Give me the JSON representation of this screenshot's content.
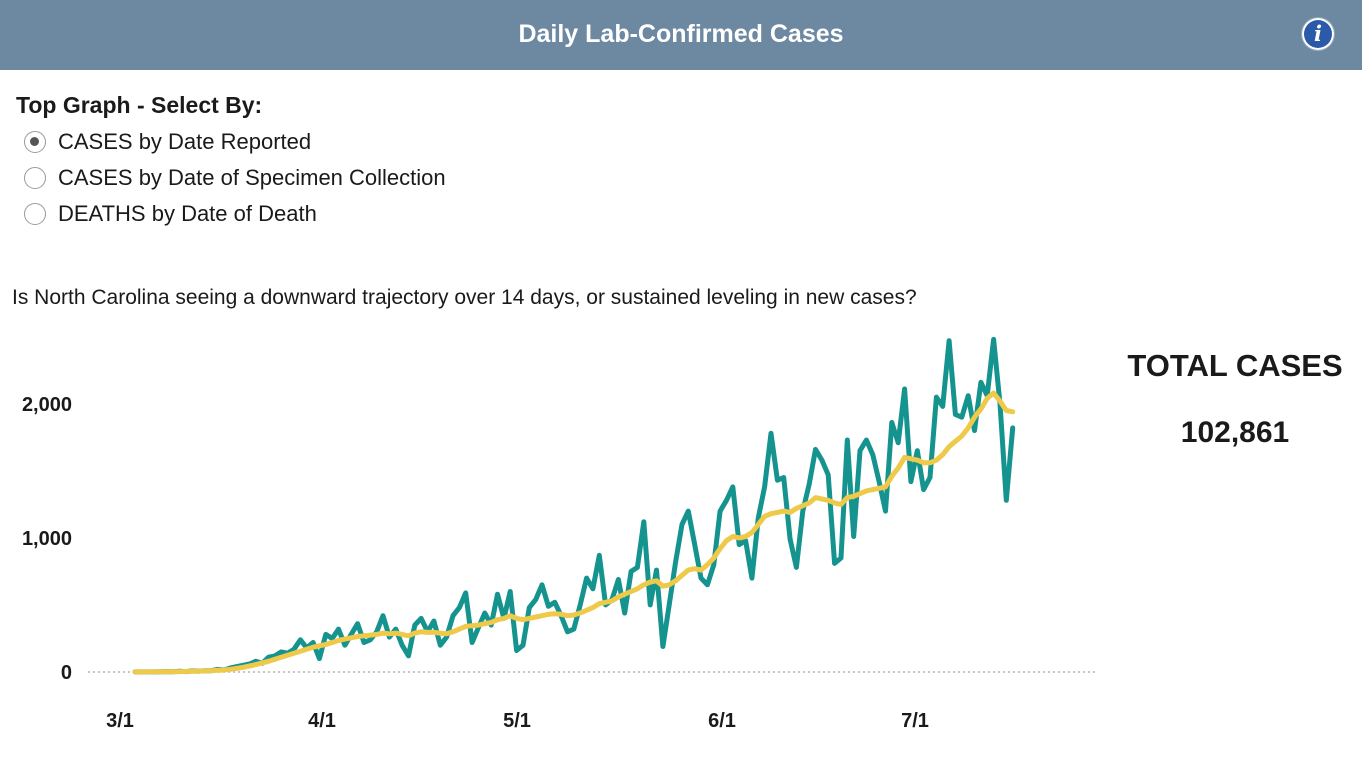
{
  "header": {
    "title": "Daily Lab-Confirmed Cases",
    "info_icon": "info-icon",
    "info_glyph": "i",
    "background_color": "#6d88a1"
  },
  "selector": {
    "label": "Top Graph - Select By:",
    "options": [
      {
        "label": "CASES by Date Reported",
        "checked": true
      },
      {
        "label": "CASES by Date of Specimen Collection",
        "checked": false
      },
      {
        "label": "DEATHS by Date of Death",
        "checked": false
      }
    ]
  },
  "question": "Is North Carolina seeing a downward trajectory over 14 days, or sustained leveling in new cases?",
  "totals": {
    "label": "TOTAL CASES",
    "value": "102,861"
  },
  "chart_data": {
    "type": "line",
    "title": "",
    "xlabel": "",
    "ylabel": "",
    "x_start": "3/3",
    "x_ticks": [
      "3/1",
      "4/1",
      "5/1",
      "6/1",
      "7/1"
    ],
    "y_ticks": [
      "0",
      "1,000",
      "2,000"
    ],
    "y_tick_values": [
      0,
      1000,
      2000
    ],
    "ylim": [
      0,
      2550
    ],
    "grid": "baseline only (dotted)",
    "legend": "none",
    "series": [
      {
        "color": "#15938f",
        "values": [
          1,
          1,
          1,
          1,
          2,
          3,
          2,
          5,
          3,
          8,
          7,
          10,
          10,
          20,
          15,
          30,
          40,
          50,
          60,
          80,
          65,
          110,
          120,
          150,
          140,
          170,
          240,
          180,
          220,
          100,
          280,
          250,
          320,
          200,
          280,
          360,
          220,
          240,
          300,
          420,
          260,
          320,
          200,
          120,
          350,
          400,
          300,
          380,
          200,
          260,
          420,
          480,
          590,
          220,
          330,
          440,
          350,
          580,
          400,
          600,
          160,
          200,
          480,
          540,
          650,
          490,
          520,
          420,
          300,
          320,
          500,
          700,
          620,
          870,
          500,
          540,
          690,
          440,
          750,
          780,
          1120,
          500,
          760,
          190,
          500,
          820,
          1100,
          1200,
          950,
          700,
          650,
          800,
          1200,
          1280,
          1380,
          950,
          980,
          700,
          1150,
          1380,
          1780,
          1430,
          1450,
          990,
          780,
          1200,
          1400,
          1660,
          1580,
          1470,
          810,
          850,
          1730,
          1010,
          1650,
          1730,
          1620,
          1420,
          1200,
          1860,
          1710,
          2110,
          1420,
          1650,
          1360,
          1450,
          2050,
          1980,
          2470,
          1920,
          1900,
          2060,
          1800,
          2160,
          2060,
          2480,
          2000,
          1280,
          1820
        ]
      },
      {
        "color": "#eec94a",
        "values": [
          1,
          1,
          1,
          2,
          2,
          2,
          2,
          3,
          4,
          5,
          6,
          8,
          10,
          13,
          15,
          20,
          27,
          35,
          45,
          55,
          68,
          80,
          95,
          110,
          125,
          140,
          155,
          170,
          185,
          195,
          205,
          220,
          235,
          245,
          255,
          265,
          270,
          275,
          280,
          290,
          285,
          290,
          280,
          270,
          290,
          300,
          295,
          295,
          290,
          285,
          300,
          320,
          340,
          345,
          350,
          360,
          370,
          390,
          400,
          420,
          400,
          390,
          400,
          410,
          420,
          430,
          435,
          430,
          420,
          425,
          440,
          460,
          480,
          510,
          520,
          530,
          560,
          580,
          600,
          620,
          650,
          670,
          680,
          640,
          650,
          680,
          720,
          760,
          770,
          760,
          800,
          850,
          920,
          980,
          1010,
          1000,
          1010,
          1040,
          1100,
          1160,
          1180,
          1190,
          1200,
          1190,
          1220,
          1240,
          1260,
          1300,
          1290,
          1280,
          1260,
          1250,
          1300,
          1310,
          1330,
          1350,
          1360,
          1370,
          1380,
          1460,
          1520,
          1600,
          1590,
          1580,
          1560,
          1560,
          1580,
          1620,
          1680,
          1720,
          1760,
          1820,
          1900,
          1960,
          2040,
          2080,
          2020,
          1950,
          1940
        ]
      }
    ]
  }
}
